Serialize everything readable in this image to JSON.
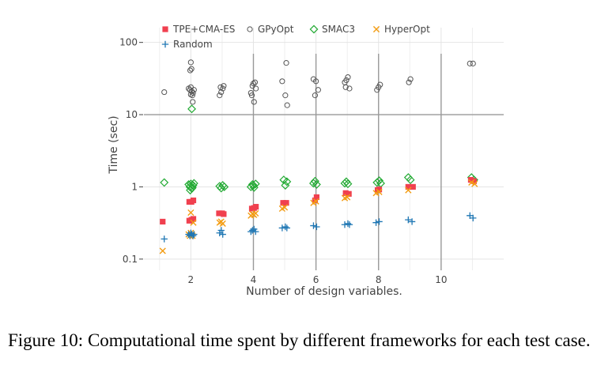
{
  "caption": "Figure 10: Computational time spent by different frameworks for each test case.",
  "chart_data": {
    "type": "scatter",
    "title": "",
    "xlabel": "Number of design variables.",
    "ylabel": "Time (sec)",
    "x_ticks": [
      2,
      4,
      6,
      8,
      10
    ],
    "y_ticks": [
      0.1,
      1,
      10,
      100
    ],
    "y_tick_labels": [
      "0.1",
      "1",
      "10",
      "100"
    ],
    "xlim": [
      0.5,
      12
    ],
    "ylim": [
      0.07,
      160
    ],
    "y_scale": "log",
    "grid": true,
    "legend_position": "top",
    "colors": {
      "TPE+CMA-ES": "#f0404f",
      "GPyOpt": "#555555",
      "SMAC3": "#22aa33",
      "HyperOpt": "#f39c12",
      "Random": "#1f77b4"
    },
    "series": [
      {
        "name": "TPE+CMA-ES",
        "marker": "square",
        "points": [
          [
            1.1,
            0.33
          ],
          [
            1.95,
            0.62
          ],
          [
            2.02,
            0.62
          ],
          [
            2.08,
            0.65
          ],
          [
            1.95,
            0.34
          ],
          [
            2.02,
            0.35
          ],
          [
            2.08,
            0.36
          ],
          [
            2.9,
            0.43
          ],
          [
            3.0,
            0.43
          ],
          [
            3.05,
            0.42
          ],
          [
            3.95,
            0.5
          ],
          [
            4.02,
            0.51
          ],
          [
            4.08,
            0.53
          ],
          [
            4.95,
            0.6
          ],
          [
            5.05,
            0.6
          ],
          [
            5.97,
            0.65
          ],
          [
            6.02,
            0.72
          ],
          [
            6.95,
            0.82
          ],
          [
            7.05,
            0.8
          ],
          [
            7.97,
            0.9
          ],
          [
            8.02,
            0.92
          ],
          [
            8.95,
            1.0
          ],
          [
            9.1,
            1.0
          ],
          [
            10.95,
            1.25
          ],
          [
            11.05,
            1.2
          ]
        ]
      },
      {
        "name": "GPyOpt",
        "marker": "circle",
        "points": [
          [
            1.15,
            20.5
          ],
          [
            1.93,
            23
          ],
          [
            1.97,
            22
          ],
          [
            2.0,
            24
          ],
          [
            2.03,
            21
          ],
          [
            2.07,
            20
          ],
          [
            2.1,
            22
          ],
          [
            2.0,
            19
          ],
          [
            2.05,
            18.5
          ],
          [
            1.98,
            41
          ],
          [
            2.02,
            43
          ],
          [
            2.0,
            53
          ],
          [
            2.06,
            15
          ],
          [
            2.92,
            18.5
          ],
          [
            2.97,
            20.5
          ],
          [
            3.02,
            23
          ],
          [
            3.05,
            25
          ],
          [
            2.95,
            24
          ],
          [
            3.92,
            20
          ],
          [
            3.97,
            25
          ],
          [
            4.0,
            27
          ],
          [
            4.05,
            28
          ],
          [
            4.08,
            23
          ],
          [
            4.02,
            15
          ],
          [
            3.95,
            18.5
          ],
          [
            4.92,
            29
          ],
          [
            5.02,
            18.5
          ],
          [
            5.08,
            13.5
          ],
          [
            5.05,
            52
          ],
          [
            5.92,
            31
          ],
          [
            6.0,
            29
          ],
          [
            6.07,
            22
          ],
          [
            5.97,
            18.5
          ],
          [
            6.92,
            28
          ],
          [
            6.97,
            30
          ],
          [
            7.02,
            33
          ],
          [
            7.07,
            23
          ],
          [
            6.95,
            24
          ],
          [
            7.95,
            22
          ],
          [
            8.0,
            24
          ],
          [
            8.05,
            26
          ],
          [
            8.97,
            28
          ],
          [
            9.02,
            31
          ],
          [
            10.92,
            51
          ],
          [
            11.02,
            51
          ]
        ]
      },
      {
        "name": "SMAC3",
        "marker": "diamond",
        "points": [
          [
            1.15,
            1.15
          ],
          [
            1.93,
            1.08
          ],
          [
            1.97,
            1.0
          ],
          [
            2.0,
            1.1
          ],
          [
            2.03,
            0.95
          ],
          [
            2.07,
            1.05
          ],
          [
            2.1,
            1.12
          ],
          [
            1.98,
            0.9
          ],
          [
            2.05,
            0.98
          ],
          [
            2.03,
            12
          ],
          [
            2.92,
            1.02
          ],
          [
            2.97,
            0.96
          ],
          [
            3.02,
            1.05
          ],
          [
            3.07,
            1.0
          ],
          [
            3.92,
            1.0
          ],
          [
            3.97,
            1.08
          ],
          [
            4.02,
            0.98
          ],
          [
            4.07,
            1.1
          ],
          [
            4.0,
            1.05
          ],
          [
            4.97,
            1.25
          ],
          [
            5.02,
            1.05
          ],
          [
            5.07,
            1.18
          ],
          [
            5.92,
            1.12
          ],
          [
            5.97,
            1.2
          ],
          [
            6.02,
            1.08
          ],
          [
            6.92,
            1.12
          ],
          [
            6.97,
            1.18
          ],
          [
            7.02,
            1.1
          ],
          [
            7.95,
            1.15
          ],
          [
            8.02,
            1.22
          ],
          [
            8.07,
            1.12
          ],
          [
            8.95,
            1.35
          ],
          [
            9.02,
            1.25
          ],
          [
            10.97,
            1.35
          ],
          [
            11.05,
            1.25
          ]
        ]
      },
      {
        "name": "HyperOpt",
        "marker": "x",
        "points": [
          [
            1.1,
            0.13
          ],
          [
            1.93,
            0.22
          ],
          [
            1.97,
            0.21
          ],
          [
            2.0,
            0.23
          ],
          [
            2.03,
            0.22
          ],
          [
            2.08,
            0.32
          ],
          [
            2.0,
            0.44
          ],
          [
            2.05,
            0.21
          ],
          [
            2.92,
            0.32
          ],
          [
            2.97,
            0.33
          ],
          [
            3.02,
            0.31
          ],
          [
            3.92,
            0.4
          ],
          [
            3.97,
            0.42
          ],
          [
            4.02,
            0.41
          ],
          [
            4.07,
            0.43
          ],
          [
            4.92,
            0.5
          ],
          [
            5.0,
            0.52
          ],
          [
            5.92,
            0.6
          ],
          [
            6.0,
            0.63
          ],
          [
            6.92,
            0.7
          ],
          [
            7.0,
            0.72
          ],
          [
            7.92,
            0.82
          ],
          [
            8.02,
            0.85
          ],
          [
            8.95,
            0.9
          ],
          [
            10.97,
            1.15
          ],
          [
            11.07,
            1.1
          ]
        ]
      },
      {
        "name": "Random",
        "marker": "plus",
        "points": [
          [
            1.15,
            0.19
          ],
          [
            1.93,
            0.22
          ],
          [
            1.97,
            0.21
          ],
          [
            2.0,
            0.23
          ],
          [
            2.03,
            0.22
          ],
          [
            2.07,
            0.21
          ],
          [
            2.1,
            0.22
          ],
          [
            2.92,
            0.23
          ],
          [
            2.97,
            0.25
          ],
          [
            3.02,
            0.22
          ],
          [
            3.92,
            0.24
          ],
          [
            3.97,
            0.25
          ],
          [
            4.02,
            0.26
          ],
          [
            4.07,
            0.24
          ],
          [
            4.92,
            0.27
          ],
          [
            5.02,
            0.28
          ],
          [
            5.07,
            0.27
          ],
          [
            5.92,
            0.29
          ],
          [
            6.02,
            0.28
          ],
          [
            6.92,
            0.3
          ],
          [
            7.02,
            0.31
          ],
          [
            7.07,
            0.3
          ],
          [
            7.92,
            0.32
          ],
          [
            8.02,
            0.33
          ],
          [
            8.95,
            0.35
          ],
          [
            9.07,
            0.33
          ],
          [
            10.92,
            0.4
          ],
          [
            11.02,
            0.37
          ]
        ]
      }
    ]
  }
}
